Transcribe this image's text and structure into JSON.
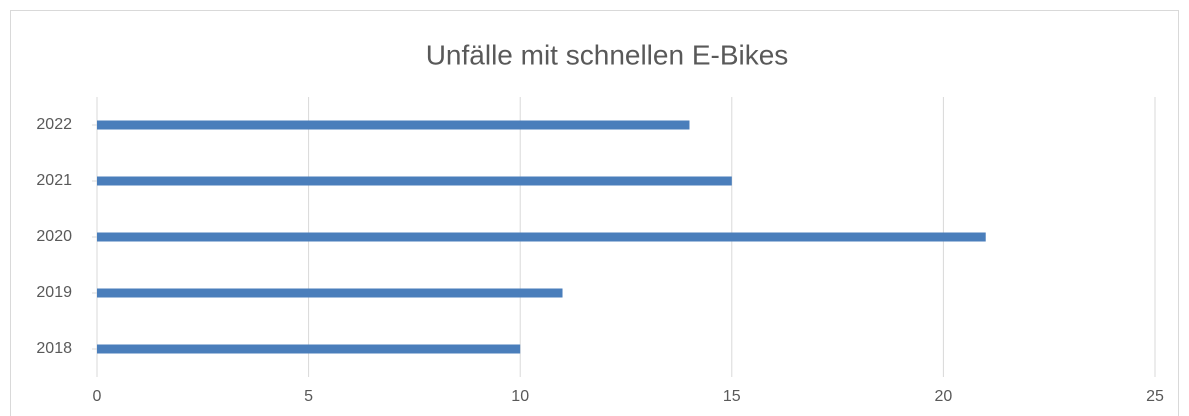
{
  "chart_data": {
    "type": "barh",
    "title": "Unfälle mit schnellen E-Bikes",
    "categories": [
      "2018",
      "2019",
      "2020",
      "2021",
      "2022"
    ],
    "values": [
      10,
      11,
      21,
      15,
      14
    ],
    "color": "#4a7ebb",
    "xlim": [
      0,
      25
    ],
    "xticks": [
      0,
      5,
      10,
      15,
      20,
      25
    ],
    "grid": true
  }
}
